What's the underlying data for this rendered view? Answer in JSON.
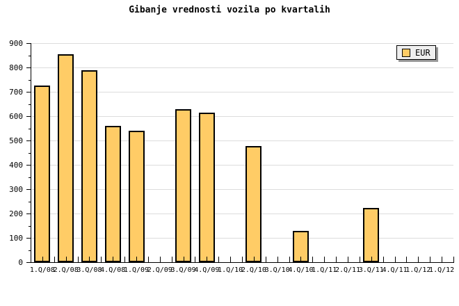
{
  "title": "Gibanje vrednosti vozila po kvartalih",
  "legend": {
    "label": "EUR"
  },
  "colors": {
    "background": "#FFFFFF",
    "bar_fill": "#FFCC66",
    "bar_border": "#000000",
    "gridline": "#DCDCDC",
    "axis": "#000000",
    "legend_bg": "#EFEFEF",
    "legend_shadow": "#999999",
    "text": "#000000"
  },
  "chart_data": {
    "type": "bar",
    "title": "Gibanje vrednosti vozila po kvartalih",
    "categories": [
      "1.Q/08",
      "2.Q/08",
      "3.Q/08",
      "4.Q/08",
      "1.Q/09",
      "2.Q/09",
      "3.Q/09",
      "4.Q/09",
      "1.Q/10",
      "2.Q/10",
      "3.Q/10",
      "4.Q/10",
      "1.Q/11",
      "2.Q/11",
      "3.Q/11",
      "4.Q/11",
      "1.Q/12",
      "1.Q/12"
    ],
    "series": [
      {
        "name": "EUR",
        "values": [
          725,
          855,
          790,
          560,
          540,
          0,
          630,
          615,
          0,
          478,
          0,
          130,
          0,
          0,
          223,
          0,
          0,
          0
        ]
      }
    ],
    "xlabel": "",
    "ylabel": "",
    "ylim": [
      0,
      900
    ],
    "y_ticks": [
      0,
      100,
      200,
      300,
      400,
      500,
      600,
      700,
      800,
      900
    ],
    "y_minor_step": 50,
    "grid": true,
    "legend_position": "top-right"
  }
}
